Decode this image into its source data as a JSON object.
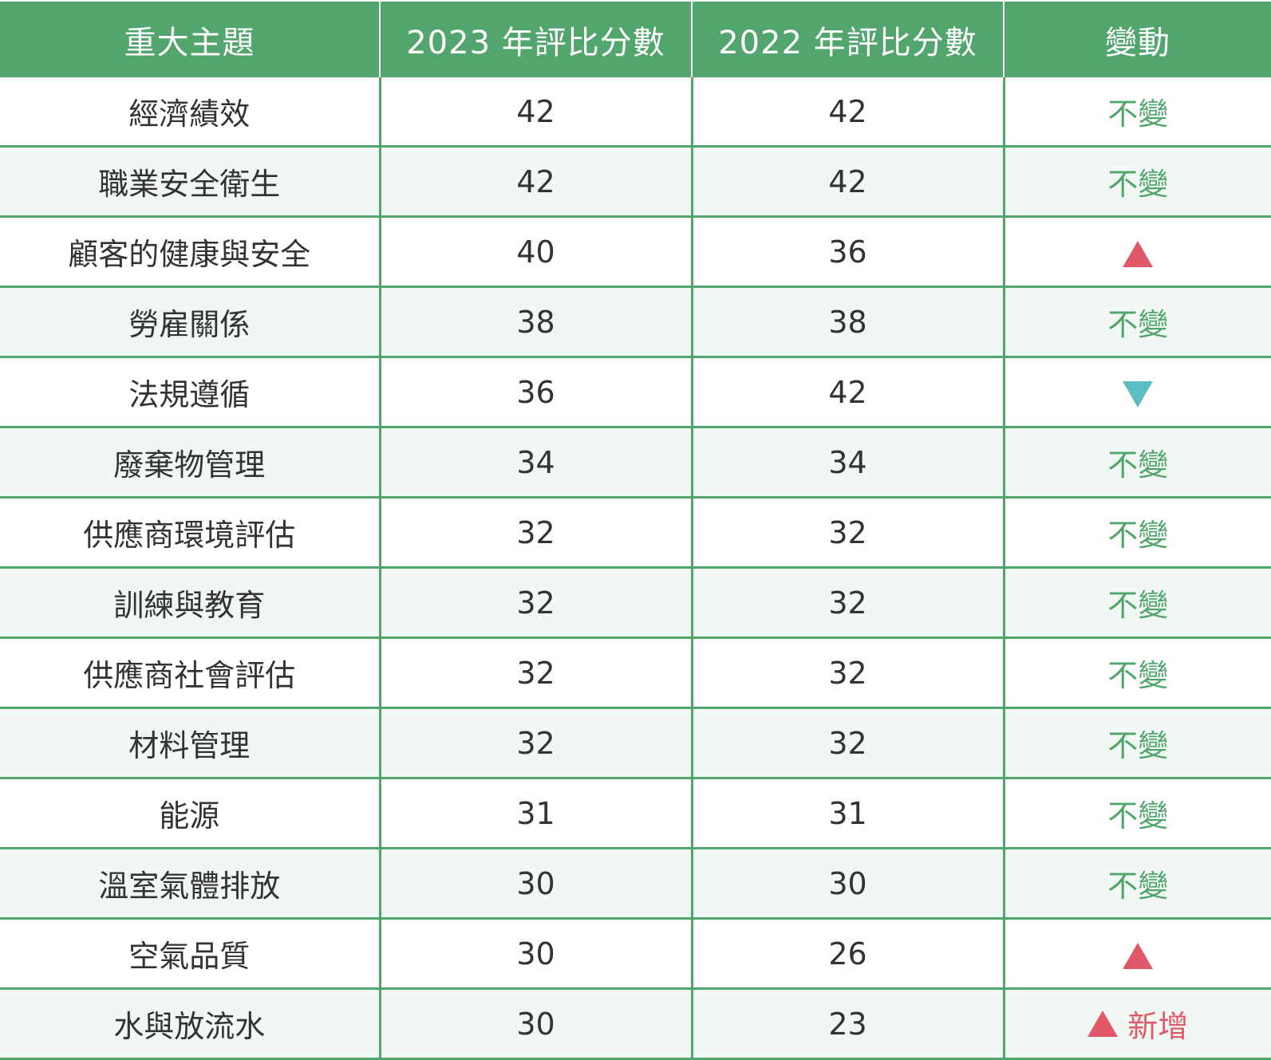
{
  "colors": {
    "header_bg": "#52a56c",
    "grid": "#52a56c",
    "stripe": "#f1f7f2",
    "up": "#e15969",
    "down": "#5bbdc4"
  },
  "headers": [
    "重大主題",
    "2023 年評比分數",
    "2022 年評比分數",
    "變動"
  ],
  "rows": [
    {
      "topic": "經濟績效",
      "score_2023": "42",
      "score_2022": "42",
      "change": "不變",
      "trend": "same"
    },
    {
      "topic": "職業安全衛生",
      "score_2023": "42",
      "score_2022": "42",
      "change": "不變",
      "trend": "same"
    },
    {
      "topic": "顧客的健康與安全",
      "score_2023": "40",
      "score_2022": "36",
      "change": "",
      "trend": "up"
    },
    {
      "topic": "勞雇關係",
      "score_2023": "38",
      "score_2022": "38",
      "change": "不變",
      "trend": "same"
    },
    {
      "topic": "法規遵循",
      "score_2023": "36",
      "score_2022": "42",
      "change": "",
      "trend": "down"
    },
    {
      "topic": "廢棄物管理",
      "score_2023": "34",
      "score_2022": "34",
      "change": "不變",
      "trend": "same"
    },
    {
      "topic": "供應商環境評估",
      "score_2023": "32",
      "score_2022": "32",
      "change": "不變",
      "trend": "same"
    },
    {
      "topic": "訓練與教育",
      "score_2023": "32",
      "score_2022": "32",
      "change": "不變",
      "trend": "same"
    },
    {
      "topic": "供應商社會評估",
      "score_2023": "32",
      "score_2022": "32",
      "change": "不變",
      "trend": "same"
    },
    {
      "topic": "材料管理",
      "score_2023": "32",
      "score_2022": "32",
      "change": "不變",
      "trend": "same"
    },
    {
      "topic": "能源",
      "score_2023": "31",
      "score_2022": "31",
      "change": "不變",
      "trend": "same"
    },
    {
      "topic": "溫室氣體排放",
      "score_2023": "30",
      "score_2022": "30",
      "change": "不變",
      "trend": "same"
    },
    {
      "topic": "空氣品質",
      "score_2023": "30",
      "score_2022": "26",
      "change": "",
      "trend": "up"
    },
    {
      "topic": "水與放流水",
      "score_2023": "30",
      "score_2022": "23",
      "change": "新增",
      "trend": "up-new"
    }
  ]
}
